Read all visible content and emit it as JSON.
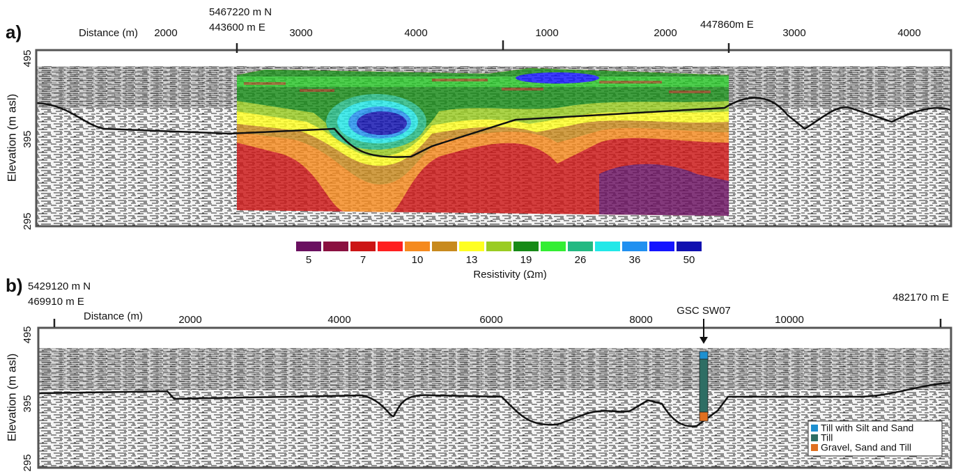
{
  "panel_a": {
    "label": "a)",
    "northing": "5467220 m N",
    "easting_start": "443600 m E",
    "easting_end": "447860m E",
    "x_axis_title": "Distance (m)",
    "x_ticks_1": [
      2000,
      3000,
      4000
    ],
    "x_ticks_2": [
      1000,
      2000,
      3000,
      4000
    ],
    "y_axis_title": "Elevation (m asl)",
    "y_ticks": [
      495,
      395,
      295
    ]
  },
  "colorbar": {
    "title": "Resistivity (Ωm)",
    "colors": [
      "#6a1060",
      "#8a1040",
      "#cc1515",
      "#ff1f1f",
      "#f58a1e",
      "#c88a1e",
      "#ffff22",
      "#9acc22",
      "#178a17",
      "#33ee33",
      "#22b982",
      "#22e8e8",
      "#2090f0",
      "#1414ff",
      "#1010b0"
    ],
    "ticks": [
      5,
      7,
      10,
      13,
      19,
      26,
      36,
      50
    ]
  },
  "panel_b": {
    "label": "b)",
    "northing": "5429120 m N",
    "easting_start": "469910 m E",
    "easting_end": "482170 m E",
    "x_axis_title": "Distance (m)",
    "x_ticks": [
      2000,
      4000,
      6000,
      8000,
      10000
    ],
    "y_axis_title": "Elevation (m asl)",
    "y_ticks": [
      495,
      395,
      295
    ],
    "borehole": "GSC SW07",
    "legend": [
      {
        "label": "Till with Silt and Sand",
        "color": "#1e90d0"
      },
      {
        "label": "Till",
        "color": "#2e6e64"
      },
      {
        "label": "Gravel, Sand and Till",
        "color": "#e07020"
      }
    ]
  }
}
